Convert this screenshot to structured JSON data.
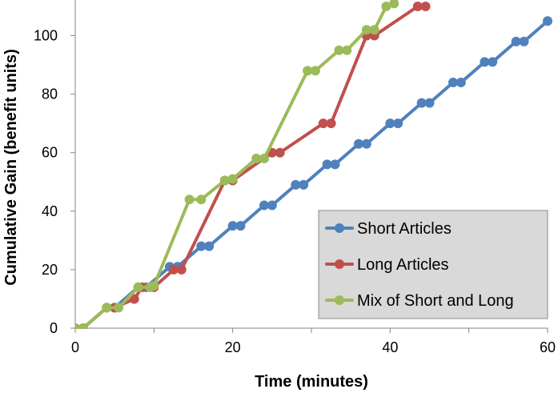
{
  "chart_data": {
    "type": "line",
    "title": "",
    "xlabel": "Time (minutes)",
    "ylabel": "Cumulative Gain (benefit units)",
    "xlim": [
      0,
      60
    ],
    "ylim": [
      0,
      110
    ],
    "xticks": [
      0,
      20,
      40,
      60
    ],
    "yticks": [
      0,
      20,
      40,
      60,
      80,
      100
    ],
    "grid": false,
    "legend_position": "bottom-right",
    "series": [
      {
        "name": "Short Articles",
        "color": "#4F81BD",
        "points": [
          [
            0,
            0
          ],
          [
            1,
            0
          ],
          [
            4,
            7
          ],
          [
            5,
            7
          ],
          [
            8,
            14
          ],
          [
            9,
            14
          ],
          [
            12,
            21
          ],
          [
            13,
            21
          ],
          [
            16,
            28
          ],
          [
            17,
            28
          ],
          [
            20,
            35
          ],
          [
            21,
            35
          ],
          [
            24,
            42
          ],
          [
            25,
            42
          ],
          [
            28,
            49
          ],
          [
            29,
            49
          ],
          [
            32,
            56
          ],
          [
            33,
            56
          ],
          [
            36,
            63
          ],
          [
            37,
            63
          ],
          [
            40,
            70
          ],
          [
            41,
            70
          ],
          [
            44,
            77
          ],
          [
            45,
            77
          ],
          [
            48,
            84
          ],
          [
            49,
            84
          ],
          [
            52,
            91
          ],
          [
            53,
            91
          ],
          [
            56,
            98
          ],
          [
            57,
            98
          ],
          [
            60,
            105
          ]
        ]
      },
      {
        "name": "Long Articles",
        "color": "#C0504D",
        "points": [
          [
            0,
            0
          ],
          [
            1,
            0
          ],
          [
            4,
            7
          ],
          [
            5,
            7
          ],
          [
            7.5,
            10
          ],
          [
            8.5,
            14
          ],
          [
            10,
            14
          ],
          [
            12.5,
            20
          ],
          [
            13.5,
            20
          ],
          [
            19,
            50.5
          ],
          [
            20,
            50.5
          ],
          [
            25,
            60
          ],
          [
            26,
            60
          ],
          [
            31.5,
            70
          ],
          [
            32.5,
            70
          ],
          [
            37,
            100
          ],
          [
            38,
            100
          ],
          [
            43.5,
            110
          ],
          [
            44.5,
            110
          ]
        ]
      },
      {
        "name": "Mix of Short and Long",
        "color": "#9BBB59",
        "points": [
          [
            0,
            0
          ],
          [
            1,
            0
          ],
          [
            4,
            7
          ],
          [
            5.5,
            7
          ],
          [
            8,
            14
          ],
          [
            9.5,
            14
          ],
          [
            10,
            14.5
          ],
          [
            14.5,
            44
          ],
          [
            16,
            44
          ],
          [
            19,
            50.5
          ],
          [
            20,
            51
          ],
          [
            23,
            58
          ],
          [
            24,
            58
          ],
          [
            29.5,
            88
          ],
          [
            30.5,
            88
          ],
          [
            33.5,
            95
          ],
          [
            34.5,
            95
          ],
          [
            37,
            102
          ],
          [
            38,
            102
          ],
          [
            39.5,
            110
          ],
          [
            40.5,
            111
          ]
        ]
      }
    ]
  }
}
